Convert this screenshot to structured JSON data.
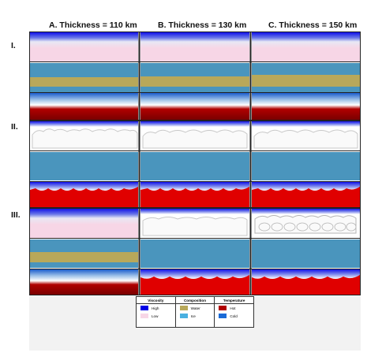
{
  "columns": [
    "A. Thickness = 110 km",
    "B. Thickness = 130 km",
    "C. Thickness = 150 km"
  ],
  "rows": [
    "I.",
    "II.",
    "III."
  ],
  "legend": {
    "viscosity": {
      "title": "Viscosity",
      "high": "High",
      "low": "Low"
    },
    "composition": {
      "title": "Composition",
      "water": "Water",
      "ice": "Ice"
    },
    "temperature": {
      "title": "Temperature",
      "hot": "Hot",
      "cold": "Cold"
    }
  },
  "colors": {
    "viscosity_high": "#0000e6",
    "viscosity_low": "#f7d6e6",
    "water": "#b8a85a",
    "ice": "#4a95bd",
    "hot": "#8b0000",
    "hot_bright": "#e00000",
    "cold": "#1a5ccc"
  }
}
